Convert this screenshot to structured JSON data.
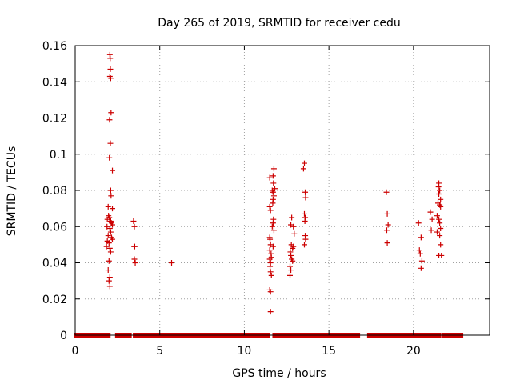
{
  "chart_data": {
    "type": "scatter",
    "title": "Day 265 of 2019, SRMTID for receiver cedu",
    "xlabel": "GPS time / hours",
    "ylabel": "SRMTID / TECUs",
    "xlim": [
      0,
      24.5
    ],
    "ylim": [
      0,
      0.16
    ],
    "xticks": [
      0,
      5,
      10,
      15,
      20
    ],
    "yticks": [
      0,
      0.02,
      0.04,
      0.06,
      0.08,
      0.1,
      0.12,
      0.14,
      0.16
    ],
    "xtick_labels": [
      "0",
      "5",
      "10",
      "15",
      "20"
    ],
    "ytick_labels": [
      "0",
      "0.02",
      "0.04",
      "0.06",
      "0.08",
      "0.1",
      "0.12",
      "0.14",
      "0.16"
    ],
    "grid": true,
    "marker": "+",
    "color": "#cc0000",
    "zero_segments": [
      [
        0.05,
        1.95
      ],
      [
        2.5,
        3.2
      ],
      [
        3.55,
        5.95
      ],
      [
        6.05,
        11.4
      ],
      [
        11.8,
        12.6
      ],
      [
        12.8,
        13.4
      ],
      [
        13.6,
        16.7
      ],
      [
        17.4,
        20.35
      ],
      [
        20.45,
        20.7
      ],
      [
        20.85,
        21.2
      ],
      [
        21.35,
        21.5
      ],
      [
        21.8,
        22.8
      ]
    ],
    "points": [
      [
        2.05,
        0.155
      ],
      [
        2.07,
        0.153
      ],
      [
        2.08,
        0.147
      ],
      [
        2.05,
        0.143
      ],
      [
        2.1,
        0.142
      ],
      [
        2.12,
        0.123
      ],
      [
        2.03,
        0.119
      ],
      [
        2.08,
        0.106
      ],
      [
        2.02,
        0.098
      ],
      [
        2.2,
        0.091
      ],
      [
        2.1,
        0.08
      ],
      [
        2.12,
        0.077
      ],
      [
        1.95,
        0.071
      ],
      [
        2.2,
        0.07
      ],
      [
        1.97,
        0.066
      ],
      [
        2.02,
        0.065
      ],
      [
        1.9,
        0.064
      ],
      [
        2.1,
        0.063
      ],
      [
        2.15,
        0.062
      ],
      [
        2.2,
        0.061
      ],
      [
        1.88,
        0.06
      ],
      [
        2.05,
        0.059
      ],
      [
        2.1,
        0.057
      ],
      [
        1.95,
        0.055
      ],
      [
        2.15,
        0.054
      ],
      [
        2.2,
        0.053
      ],
      [
        1.9,
        0.052
      ],
      [
        2.0,
        0.051
      ],
      [
        1.85,
        0.049
      ],
      [
        2.05,
        0.048
      ],
      [
        2.1,
        0.046
      ],
      [
        2.0,
        0.041
      ],
      [
        1.95,
        0.036
      ],
      [
        2.05,
        0.032
      ],
      [
        2.0,
        0.03
      ],
      [
        2.05,
        0.027
      ],
      [
        3.45,
        0.063
      ],
      [
        3.5,
        0.06
      ],
      [
        3.48,
        0.049
      ],
      [
        3.52,
        0.049
      ],
      [
        3.5,
        0.042
      ],
      [
        3.55,
        0.04
      ],
      [
        5.7,
        0.04
      ],
      [
        11.75,
        0.092
      ],
      [
        11.5,
        0.087
      ],
      [
        11.7,
        0.088
      ],
      [
        11.72,
        0.084
      ],
      [
        11.8,
        0.081
      ],
      [
        11.65,
        0.08
      ],
      [
        11.7,
        0.079
      ],
      [
        11.75,
        0.077
      ],
      [
        11.7,
        0.075
      ],
      [
        11.68,
        0.073
      ],
      [
        11.5,
        0.071
      ],
      [
        11.55,
        0.069
      ],
      [
        11.72,
        0.064
      ],
      [
        11.7,
        0.062
      ],
      [
        11.65,
        0.06
      ],
      [
        11.75,
        0.058
      ],
      [
        11.5,
        0.054
      ],
      [
        11.52,
        0.053
      ],
      [
        11.55,
        0.05
      ],
      [
        11.7,
        0.049
      ],
      [
        11.5,
        0.047
      ],
      [
        11.58,
        0.045
      ],
      [
        11.6,
        0.043
      ],
      [
        11.5,
        0.042
      ],
      [
        11.55,
        0.04
      ],
      [
        11.52,
        0.038
      ],
      [
        11.55,
        0.035
      ],
      [
        11.6,
        0.033
      ],
      [
        11.5,
        0.025
      ],
      [
        11.55,
        0.024
      ],
      [
        11.55,
        0.013
      ],
      [
        12.8,
        0.065
      ],
      [
        12.75,
        0.061
      ],
      [
        12.9,
        0.06
      ],
      [
        12.95,
        0.056
      ],
      [
        12.78,
        0.05
      ],
      [
        12.9,
        0.049
      ],
      [
        12.85,
        0.048
      ],
      [
        12.72,
        0.046
      ],
      [
        12.75,
        0.044
      ],
      [
        12.8,
        0.042
      ],
      [
        12.85,
        0.041
      ],
      [
        12.7,
        0.038
      ],
      [
        12.75,
        0.036
      ],
      [
        12.7,
        0.033
      ],
      [
        13.55,
        0.095
      ],
      [
        13.5,
        0.092
      ],
      [
        13.6,
        0.079
      ],
      [
        13.62,
        0.076
      ],
      [
        13.55,
        0.067
      ],
      [
        13.6,
        0.065
      ],
      [
        13.58,
        0.063
      ],
      [
        13.6,
        0.055
      ],
      [
        13.62,
        0.053
      ],
      [
        13.55,
        0.05
      ],
      [
        18.4,
        0.079
      ],
      [
        18.45,
        0.067
      ],
      [
        18.5,
        0.061
      ],
      [
        18.42,
        0.058
      ],
      [
        18.45,
        0.051
      ],
      [
        20.3,
        0.062
      ],
      [
        20.45,
        0.054
      ],
      [
        20.35,
        0.047
      ],
      [
        20.4,
        0.045
      ],
      [
        20.5,
        0.041
      ],
      [
        20.45,
        0.037
      ],
      [
        21.0,
        0.068
      ],
      [
        21.1,
        0.064
      ],
      [
        21.05,
        0.058
      ],
      [
        21.5,
        0.084
      ],
      [
        21.48,
        0.082
      ],
      [
        21.55,
        0.08
      ],
      [
        21.5,
        0.078
      ],
      [
        21.6,
        0.075
      ],
      [
        21.45,
        0.073
      ],
      [
        21.55,
        0.072
      ],
      [
        21.6,
        0.071
      ],
      [
        21.4,
        0.066
      ],
      [
        21.5,
        0.064
      ],
      [
        21.55,
        0.062
      ],
      [
        21.6,
        0.059
      ],
      [
        21.4,
        0.057
      ],
      [
        21.55,
        0.055
      ],
      [
        21.6,
        0.05
      ],
      [
        21.5,
        0.044
      ],
      [
        21.65,
        0.044
      ]
    ]
  }
}
